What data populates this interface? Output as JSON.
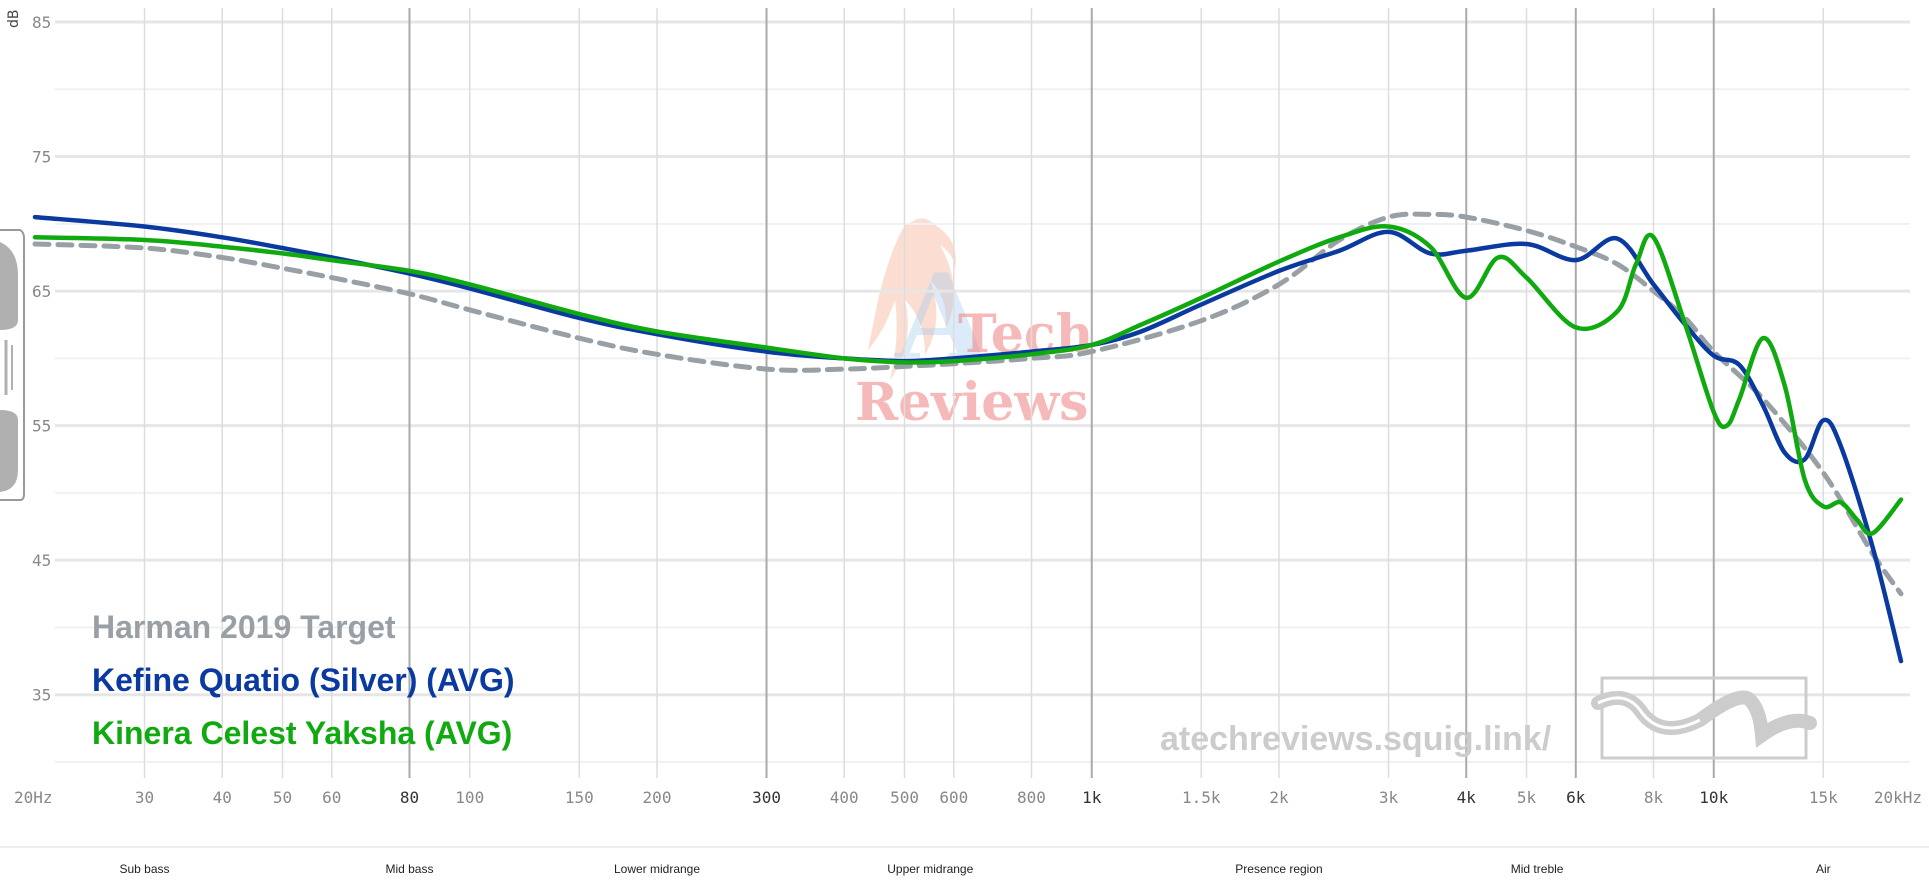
{
  "chart_data": {
    "type": "line",
    "x_scale": "log",
    "xlim": [
      20,
      20000
    ],
    "ylim": [
      30,
      85
    ],
    "unit_label": "dB",
    "y_ticks": [
      35,
      45,
      55,
      65,
      75,
      85
    ],
    "x_ticks": [
      {
        "value": 20,
        "label": "20Hz",
        "major": false
      },
      {
        "value": 30,
        "label": "30",
        "major": false
      },
      {
        "value": 40,
        "label": "40",
        "major": false
      },
      {
        "value": 50,
        "label": "50",
        "major": false
      },
      {
        "value": 60,
        "label": "60",
        "major": false
      },
      {
        "value": 80,
        "label": "80",
        "major": true
      },
      {
        "value": 100,
        "label": "100",
        "major": false
      },
      {
        "value": 150,
        "label": "150",
        "major": false
      },
      {
        "value": 200,
        "label": "200",
        "major": false
      },
      {
        "value": 300,
        "label": "300",
        "major": true
      },
      {
        "value": 400,
        "label": "400",
        "major": false
      },
      {
        "value": 500,
        "label": "500",
        "major": false
      },
      {
        "value": 600,
        "label": "600",
        "major": false
      },
      {
        "value": 800,
        "label": "800",
        "major": false
      },
      {
        "value": 1000,
        "label": "1k",
        "major": true
      },
      {
        "value": 1500,
        "label": "1.5k",
        "major": false
      },
      {
        "value": 2000,
        "label": "2k",
        "major": false
      },
      {
        "value": 3000,
        "label": "3k",
        "major": false
      },
      {
        "value": 4000,
        "label": "4k",
        "major": true
      },
      {
        "value": 5000,
        "label": "5k",
        "major": false
      },
      {
        "value": 6000,
        "label": "6k",
        "major": true
      },
      {
        "value": 8000,
        "label": "8k",
        "major": false
      },
      {
        "value": 10000,
        "label": "10k",
        "major": true
      },
      {
        "value": 15000,
        "label": "15k",
        "major": false
      },
      {
        "value": 20000,
        "label": "20kHz",
        "major": false
      }
    ],
    "regions": [
      {
        "label": "Sub bass",
        "center": 30
      },
      {
        "label": "Mid bass",
        "center": 80
      },
      {
        "label": "Lower midrange",
        "center": 200
      },
      {
        "label": "Upper midrange",
        "center": 550
      },
      {
        "label": "Presence region",
        "center": 2000
      },
      {
        "label": "Mid treble",
        "center": 5200
      },
      {
        "label": "Air",
        "center": 15000
      }
    ],
    "series": [
      {
        "name": "Harman 2019 Target",
        "color": "#98a0a6",
        "dash": true,
        "x": [
          20,
          30,
          40,
          50,
          60,
          80,
          100,
          150,
          200,
          300,
          400,
          500,
          600,
          800,
          1000,
          1500,
          2000,
          2500,
          3000,
          3500,
          4000,
          5000,
          6000,
          7000,
          8000,
          9000,
          10000,
          12000,
          15000,
          18000,
          20000
        ],
        "y": [
          68.5,
          68.2,
          67.5,
          66.7,
          66.0,
          64.8,
          63.6,
          61.5,
          60.3,
          59.2,
          59.2,
          59.4,
          59.6,
          60.0,
          60.5,
          62.8,
          65.5,
          68.8,
          70.5,
          70.7,
          70.5,
          69.5,
          68.3,
          67.0,
          65.0,
          63.0,
          60.5,
          57.0,
          51.5,
          45.5,
          42.5
        ]
      },
      {
        "name": "Kefine Quatio (Silver) (AVG)",
        "color": "#0a3aa0",
        "dash": false,
        "x": [
          20,
          30,
          40,
          50,
          60,
          80,
          100,
          150,
          200,
          300,
          400,
          500,
          600,
          800,
          1000,
          1200,
          1500,
          2000,
          2500,
          3000,
          3500,
          4000,
          5000,
          6000,
          7000,
          8000,
          9000,
          10000,
          11000,
          12000,
          13000,
          14000,
          15000,
          16000,
          18000,
          20000
        ],
        "y": [
          70.5,
          69.8,
          69.0,
          68.2,
          67.5,
          66.3,
          65.2,
          63.0,
          61.8,
          60.5,
          60.0,
          59.8,
          60.0,
          60.5,
          61.0,
          62.0,
          64.0,
          66.5,
          68.0,
          69.4,
          67.8,
          68.0,
          68.5,
          67.3,
          68.9,
          65.5,
          62.5,
          60.2,
          59.5,
          56.5,
          53.0,
          52.5,
          55.4,
          53.5,
          46.0,
          37.5
        ]
      },
      {
        "name": "Kinera Celest Yaksha (AVG)",
        "color": "#10aa10",
        "dash": false,
        "x": [
          20,
          30,
          40,
          50,
          60,
          80,
          100,
          150,
          200,
          300,
          400,
          500,
          600,
          800,
          1000,
          1200,
          1500,
          2000,
          2500,
          3000,
          3500,
          4000,
          4500,
          5000,
          6000,
          7000,
          7500,
          8000,
          9000,
          10000,
          10500,
          11000,
          12000,
          13000,
          14000,
          15000,
          16000,
          17000,
          18000,
          20000
        ],
        "y": [
          69.0,
          68.8,
          68.3,
          67.8,
          67.3,
          66.5,
          65.5,
          63.3,
          62.0,
          60.8,
          60.0,
          59.7,
          59.8,
          60.3,
          61.0,
          62.5,
          64.5,
          67.2,
          69.0,
          69.8,
          68.3,
          64.5,
          67.5,
          66.0,
          62.3,
          63.5,
          67.0,
          69.0,
          62.5,
          56.0,
          55.0,
          57.0,
          61.5,
          58.0,
          51.0,
          49.0,
          49.3,
          48.0,
          47.0,
          49.5
        ]
      }
    ]
  },
  "legend_labels": [
    "Harman 2019 Target",
    "Kefine Quatio (Silver) (AVG)",
    "Kinera Celest Yaksha (AVG)"
  ],
  "watermark": {
    "line1": "Tech",
    "line2": "Reviews",
    "logo_letter": "A"
  },
  "site_url": "atechreviews.squig.link/"
}
